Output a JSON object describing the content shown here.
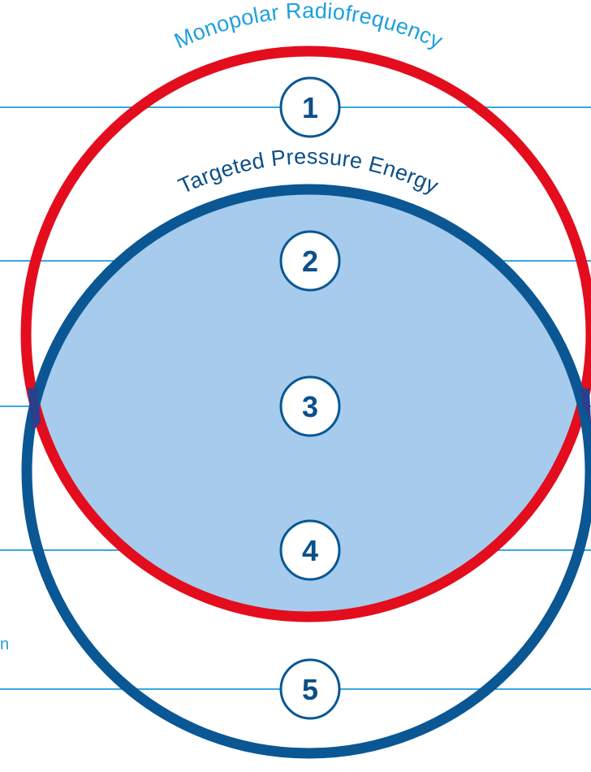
{
  "labels": {
    "outer_arc": "Monopolar Radiofrequency",
    "inner_arc": "Targeted Pressure Energy",
    "partial_left_text": "n"
  },
  "layers": [
    {
      "number": "1"
    },
    {
      "number": "2"
    },
    {
      "number": "3"
    },
    {
      "number": "4"
    },
    {
      "number": "5"
    }
  ],
  "colors": {
    "radiofrequency_ring": "#e30d1d",
    "pressure_ring": "#0a5794",
    "overlap_fill": "#a6cbec",
    "overlap_edge": "#2c3f8c",
    "guide_lines": "#38a7e3",
    "badge_border": "#0a5794",
    "badge_text": "#0b4f88",
    "outer_label": "#1ea0db",
    "inner_label": "#0b4f88",
    "left_text": "#1ea0db"
  }
}
